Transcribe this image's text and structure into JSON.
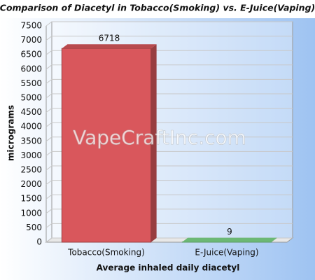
{
  "chart_data": {
    "type": "bar",
    "title": "Comparison of Diacetyl in Tobacco(Smoking) vs. E-Juice(Vaping)",
    "watermark": "VapeCraftInc.com",
    "y_label": "micrograms",
    "x_label": "Average inhaled daily diacetyl",
    "categories": [
      "Tobacco(Smoking)",
      "E-Juice(Vaping)"
    ],
    "values": [
      6718,
      9
    ],
    "colors": [
      "#d9575c",
      "#7fd88a"
    ],
    "ylim": [
      0,
      7500
    ],
    "yticks": [
      0,
      500,
      1000,
      1500,
      2000,
      2500,
      3000,
      3500,
      4000,
      4500,
      5000,
      5500,
      6000,
      6500,
      7000,
      7500
    ],
    "grid": true
  }
}
